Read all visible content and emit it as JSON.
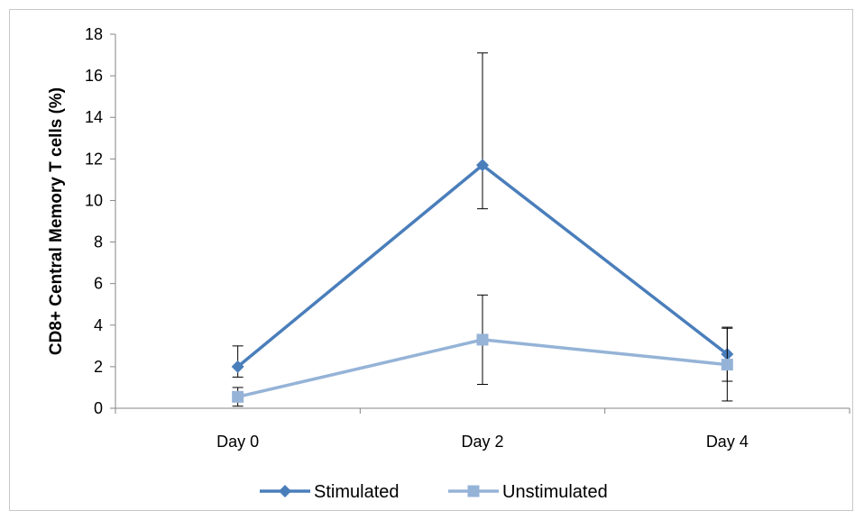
{
  "chart_data": {
    "type": "line",
    "categories": [
      "Day 0",
      "Day 2",
      "Day 4"
    ],
    "ylabel": "CD8+ Central Memory T cells (%)",
    "xlabel": "",
    "ylim": [
      0,
      18
    ],
    "yticks": [
      0,
      2,
      4,
      6,
      8,
      10,
      12,
      14,
      16,
      18
    ],
    "grid": false,
    "legend_position": "bottom",
    "series": [
      {
        "name": "Stimulated",
        "values": [
          2.0,
          11.7,
          2.6
        ],
        "error": [
          1.0,
          5.4,
          1.3
        ],
        "error_lower": [
          0.5,
          2.1,
          1.3
        ],
        "color": "#4A7EBB",
        "marker": "diamond"
      },
      {
        "name": "Unstimulated",
        "values": [
          0.55,
          3.3,
          2.1
        ],
        "error": [
          0.45,
          2.15,
          1.75
        ],
        "error_lower": [
          0.45,
          2.15,
          1.75
        ],
        "color": "#95B3D7",
        "marker": "square"
      }
    ]
  }
}
